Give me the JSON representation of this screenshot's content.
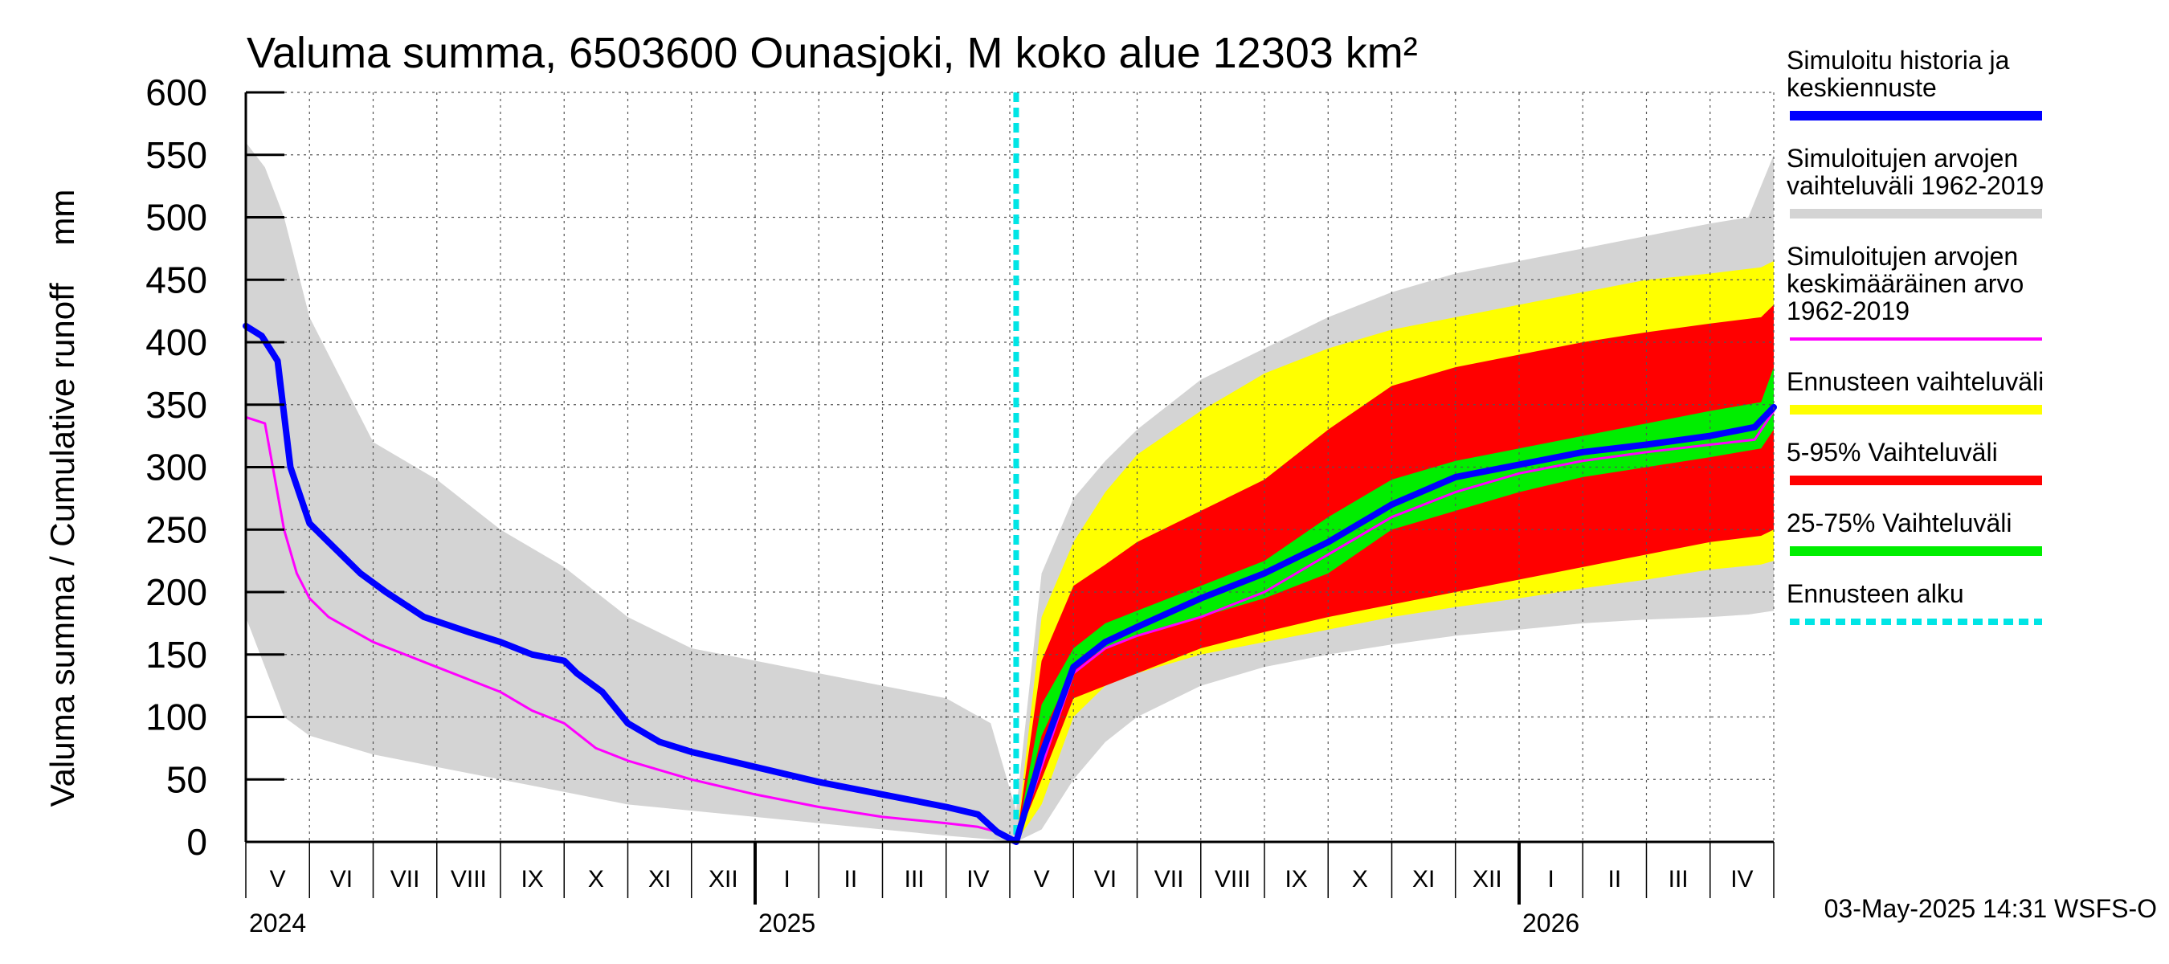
{
  "chart_data": {
    "type": "area",
    "title": "Valuma summa, 6503600 Ounasjoki, M koko alue 12303 km²",
    "ylabel": "Valuma summa / Cumulative runoff    mm",
    "xlabel": "",
    "ylim": [
      0,
      600
    ],
    "yticks": [
      0,
      50,
      100,
      150,
      200,
      250,
      300,
      350,
      400,
      450,
      500,
      550,
      600
    ],
    "xlim": [
      0,
      24
    ],
    "grid": true,
    "forecast_start": 12.1,
    "month_labels": [
      {
        "label": "V",
        "x": 0.5
      },
      {
        "label": "VI",
        "x": 1.5
      },
      {
        "label": "VII",
        "x": 2.5
      },
      {
        "label": "VIII",
        "x": 3.5
      },
      {
        "label": "IX",
        "x": 4.5
      },
      {
        "label": "X",
        "x": 5.5
      },
      {
        "label": "XI",
        "x": 6.5
      },
      {
        "label": "XII",
        "x": 7.5
      },
      {
        "label": "I",
        "x": 8.5
      },
      {
        "label": "II",
        "x": 9.5
      },
      {
        "label": "III",
        "x": 10.5
      },
      {
        "label": "IV",
        "x": 11.5
      },
      {
        "label": "V",
        "x": 12.5
      },
      {
        "label": "VI",
        "x": 13.5
      },
      {
        "label": "VII",
        "x": 14.5
      },
      {
        "label": "VIII",
        "x": 15.5
      },
      {
        "label": "IX",
        "x": 16.5
      },
      {
        "label": "X",
        "x": 17.5
      },
      {
        "label": "XI",
        "x": 18.5
      },
      {
        "label": "XII",
        "x": 19.5
      },
      {
        "label": "I",
        "x": 20.5
      },
      {
        "label": "II",
        "x": 21.5
      },
      {
        "label": "III",
        "x": 22.5
      },
      {
        "label": "IV",
        "x": 23.5
      }
    ],
    "year_labels": [
      {
        "label": "2024",
        "x": 0
      },
      {
        "label": "2025",
        "x": 8
      },
      {
        "label": "2026",
        "x": 20
      }
    ],
    "year_boundaries": [
      8,
      20
    ],
    "series": [
      {
        "name": "Simuloitujen arvojen vaihteluväli 1962-2019",
        "kind": "band",
        "color": "#d4d4d4",
        "x": [
          0,
          0.3,
          0.6,
          1,
          2,
          3,
          4,
          5,
          6,
          7,
          8,
          9,
          10,
          11,
          11.7,
          12.1,
          12.5,
          13,
          13.5,
          14,
          15,
          16,
          17,
          18,
          19,
          20,
          21,
          22,
          23,
          23.6,
          24
        ],
        "upper": [
          560,
          540,
          500,
          420,
          320,
          290,
          250,
          220,
          180,
          155,
          145,
          135,
          125,
          115,
          95,
          25,
          215,
          275,
          305,
          330,
          370,
          395,
          420,
          440,
          455,
          465,
          475,
          485,
          495,
          500,
          550
        ],
        "lower": [
          180,
          140,
          100,
          85,
          70,
          60,
          50,
          40,
          30,
          25,
          20,
          15,
          10,
          5,
          2,
          0,
          10,
          50,
          80,
          100,
          125,
          140,
          150,
          158,
          165,
          170,
          175,
          178,
          180,
          182,
          185
        ]
      },
      {
        "name": "Ennusteen vaihteluväli",
        "kind": "band",
        "color": "#ffff00",
        "x": [
          12.1,
          12.5,
          13,
          13.5,
          14,
          15,
          16,
          17,
          18,
          19,
          20,
          21,
          22,
          23,
          23.8,
          24
        ],
        "upper": [
          0,
          180,
          240,
          280,
          310,
          345,
          375,
          395,
          410,
          420,
          430,
          440,
          450,
          455,
          460,
          465
        ],
        "lower": [
          0,
          30,
          100,
          125,
          135,
          150,
          160,
          170,
          180,
          188,
          195,
          203,
          210,
          218,
          222,
          225
        ]
      },
      {
        "name": "5-95% Vaihteluväli",
        "kind": "band",
        "color": "#ff0000",
        "x": [
          12.1,
          12.5,
          13,
          13.5,
          14,
          15,
          16,
          17,
          18,
          19,
          20,
          21,
          22,
          23,
          23.8,
          24
        ],
        "upper": [
          0,
          145,
          205,
          222,
          240,
          265,
          290,
          330,
          365,
          380,
          390,
          400,
          408,
          415,
          420,
          430
        ],
        "lower": [
          0,
          50,
          115,
          125,
          135,
          155,
          168,
          180,
          190,
          200,
          210,
          220,
          230,
          240,
          245,
          250
        ]
      },
      {
        "name": "25-75% Vaihteluväli",
        "kind": "band",
        "color": "#00ee00",
        "x": [
          12.1,
          12.5,
          13,
          13.5,
          14,
          15,
          16,
          17,
          18,
          19,
          20,
          21,
          22,
          23,
          23.8,
          24
        ],
        "upper": [
          0,
          110,
          155,
          175,
          185,
          205,
          225,
          260,
          290,
          305,
          315,
          325,
          335,
          345,
          352,
          380
        ],
        "lower": [
          0,
          85,
          140,
          155,
          165,
          180,
          195,
          215,
          250,
          265,
          280,
          292,
          300,
          308,
          315,
          330
        ]
      },
      {
        "name": "Simuloitujen arvojen keskimääräinen arvo 1962-2019",
        "kind": "line",
        "color": "#ff00ff",
        "width": 3,
        "x": [
          0,
          0.3,
          0.6,
          0.8,
          1,
          1.3,
          2,
          3,
          4,
          4.5,
          5,
          5.5,
          6,
          7,
          8,
          9,
          10,
          11,
          11.5,
          11.8,
          12.1,
          12.5,
          13,
          13.5,
          14,
          15,
          16,
          17,
          18,
          19,
          20,
          21,
          22,
          23,
          23.7,
          24
        ],
        "y": [
          340,
          335,
          250,
          215,
          195,
          180,
          160,
          140,
          120,
          105,
          95,
          75,
          65,
          50,
          38,
          28,
          20,
          15,
          12,
          8,
          0,
          60,
          135,
          155,
          165,
          180,
          200,
          230,
          260,
          280,
          295,
          305,
          312,
          318,
          322,
          345
        ]
      },
      {
        "name": "Simuloitu historia ja keskiennuste",
        "kind": "line",
        "color": "#0000ff",
        "width": 8,
        "x": [
          0,
          0.25,
          0.5,
          0.7,
          1,
          1.4,
          1.8,
          2.2,
          2.8,
          3.5,
          4,
          4.5,
          5,
          5.2,
          5.6,
          6,
          6.5,
          7,
          8,
          9,
          10,
          11,
          11.5,
          11.8,
          12.1,
          12.5,
          13,
          13.5,
          14,
          15,
          16,
          17,
          18,
          19,
          20,
          21,
          22,
          23,
          23.7,
          24
        ],
        "y": [
          413,
          405,
          385,
          300,
          255,
          235,
          215,
          200,
          180,
          168,
          160,
          150,
          145,
          135,
          120,
          95,
          80,
          72,
          60,
          48,
          38,
          28,
          22,
          8,
          0,
          70,
          140,
          160,
          172,
          195,
          215,
          240,
          270,
          292,
          302,
          312,
          318,
          325,
          332,
          348
        ]
      }
    ],
    "legend": {
      "placement": "right",
      "entries": [
        {
          "lines": [
            "Simuloitu historia ja",
            "keskiennuste"
          ],
          "color": "#0000ff",
          "style": "solid"
        },
        {
          "lines": [
            "Simuloitujen arvojen",
            "vaihteluväli 1962-2019"
          ],
          "color": "#d4d4d4",
          "style": "solid"
        },
        {
          "lines": [
            "Simuloitujen arvojen",
            "keskimääräinen arvo",
            "   1962-2019"
          ],
          "color": "#ff00ff",
          "style": "thin"
        },
        {
          "lines": [
            "Ennusteen vaihteluväli"
          ],
          "color": "#ffff00",
          "style": "solid"
        },
        {
          "lines": [
            "5-95% Vaihteluväli"
          ],
          "color": "#ff0000",
          "style": "solid"
        },
        {
          "lines": [
            "25-75% Vaihteluväli"
          ],
          "color": "#00ee00",
          "style": "solid"
        },
        {
          "lines": [
            "Ennusteen alku"
          ],
          "color": "#00e5e5",
          "style": "dashed"
        }
      ]
    },
    "timestamp": "03-May-2025 14:31 WSFS-O"
  }
}
